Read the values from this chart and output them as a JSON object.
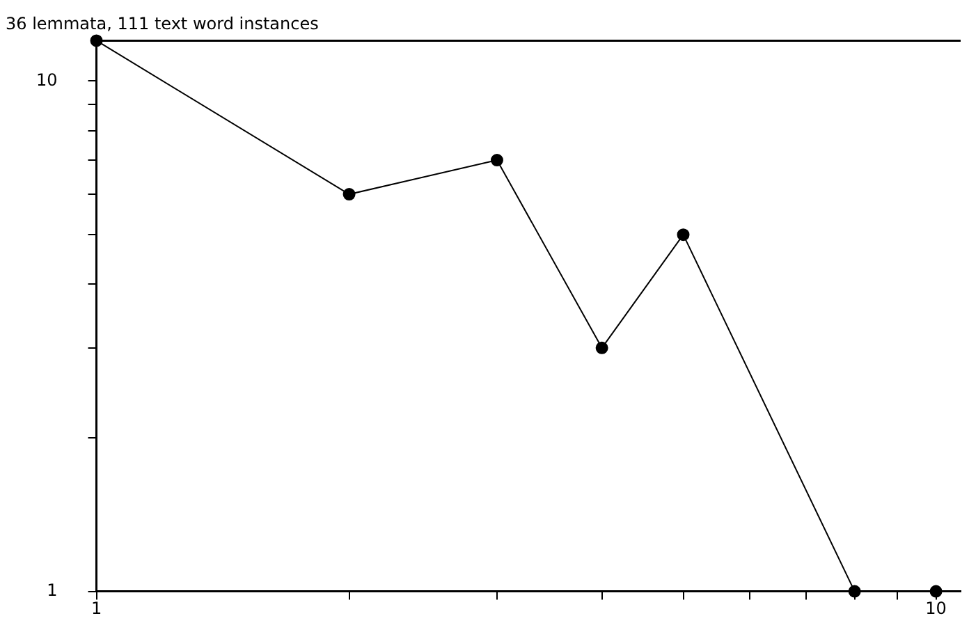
{
  "chart_data": {
    "type": "line",
    "title": "36 lemmata, 111 text word instances",
    "x": [
      1,
      2,
      3,
      4,
      5,
      8,
      10
    ],
    "values": [
      12,
      6,
      7,
      3,
      5,
      1,
      1
    ],
    "color": "#000000",
    "marker": "circle",
    "line_style": "solid",
    "log": "xy",
    "grid": false,
    "legend": false,
    "xlim": [
      1,
      10.7
    ],
    "ylim": [
      1,
      12
    ],
    "xticks": [
      1,
      {
        "value": 2,
        "label": null
      },
      {
        "value": 3,
        "label": null
      },
      {
        "value": 4,
        "label": null
      },
      {
        "value": 5,
        "label": null
      },
      {
        "value": 6,
        "label": null
      },
      {
        "value": 7,
        "label": null
      },
      {
        "value": 8,
        "label": null
      },
      {
        "value": 9,
        "label": null
      },
      10
    ],
    "yticks": [
      1,
      {
        "value": 2,
        "label": null
      },
      {
        "value": 3,
        "label": null
      },
      {
        "value": 4,
        "label": null
      },
      {
        "value": 5,
        "label": null
      },
      {
        "value": 6,
        "label": null
      },
      {
        "value": 7,
        "label": null
      },
      {
        "value": 8,
        "label": null
      },
      {
        "value": 9,
        "label": null
      },
      10
    ]
  }
}
